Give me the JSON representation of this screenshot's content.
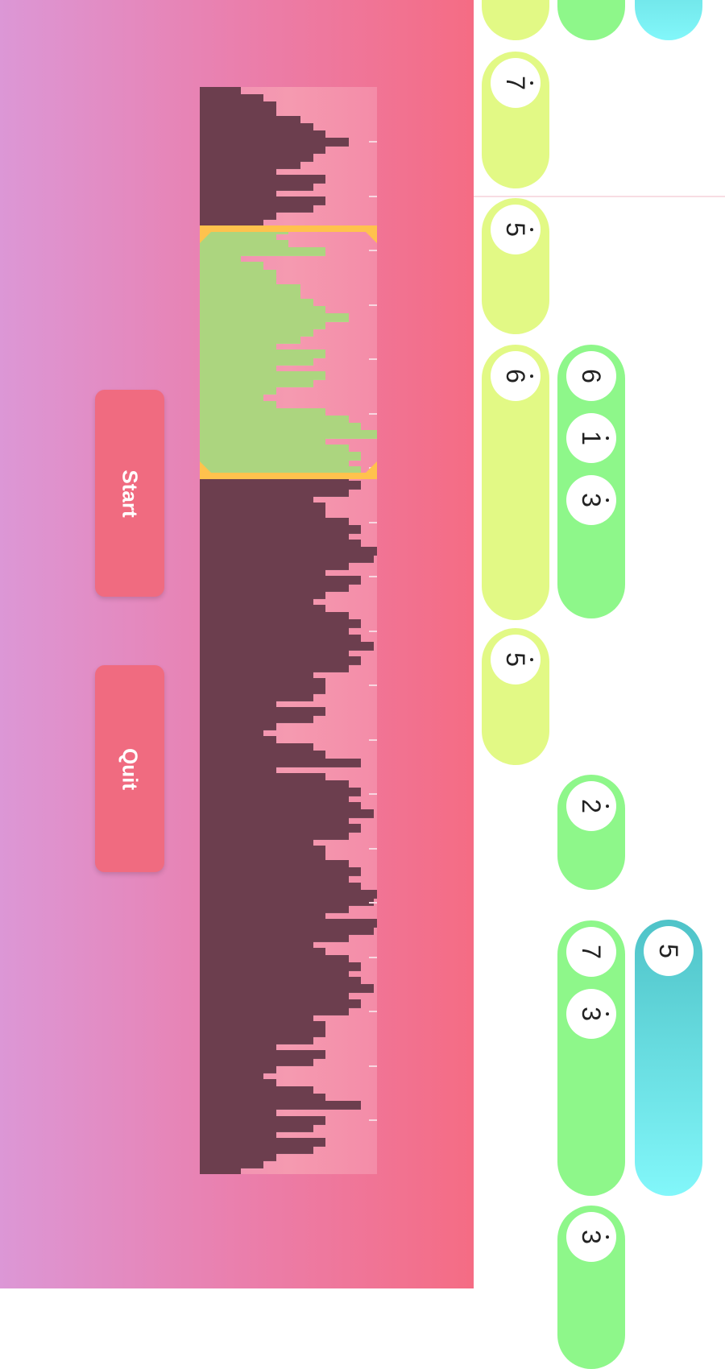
{
  "buttons": {
    "start_label": "Start",
    "quit_label": "Quit"
  },
  "colors": {
    "button": "#f06b80",
    "waveform_bar": "#6c3e4e",
    "selection_fill": "#acd57f",
    "selection_border": "#ffc24d",
    "lane_1": "#e2f985",
    "lane_2": "#8ef78a",
    "lane_3_top": "#4fc3c8",
    "lane_3_bottom": "#82f7fa"
  },
  "waveform": {
    "selection_bar_range": [
      19,
      53
    ],
    "levels": [
      0.23,
      0.36,
      0.43,
      0.43,
      0.57,
      0.64,
      0.71,
      0.84,
      0.71,
      0.64,
      0.57,
      0.43,
      0.71,
      0.64,
      0.43,
      0.71,
      0.64,
      0.43,
      0.36,
      0.5,
      0.43,
      0.5,
      0.71,
      0.23,
      0.36,
      0.43,
      0.43,
      0.57,
      0.57,
      0.64,
      0.71,
      0.84,
      0.71,
      0.64,
      0.57,
      0.43,
      0.71,
      0.64,
      0.43,
      0.71,
      0.64,
      0.43,
      0.36,
      0.43,
      0.71,
      0.84,
      0.91,
      1.0,
      0.71,
      0.84,
      0.91,
      0.84,
      0.91,
      0.84,
      0.91,
      0.84,
      0.64,
      0.71,
      0.71,
      0.84,
      0.91,
      0.84,
      0.91,
      1.0,
      0.98,
      0.84,
      0.71,
      0.91,
      0.84,
      0.71,
      0.64,
      0.71,
      0.84,
      0.91,
      0.84,
      0.91,
      0.98,
      0.84,
      0.91,
      0.84,
      0.64,
      0.71,
      0.71,
      0.64,
      0.43,
      0.71,
      0.64,
      0.43,
      0.36,
      0.43,
      0.64,
      0.71,
      0.91,
      0.43,
      0.71,
      0.84,
      0.91,
      0.84,
      0.91,
      0.98,
      0.84,
      0.91,
      0.84,
      0.64,
      0.71,
      0.71,
      0.84,
      0.91,
      0.84,
      0.91,
      1.0,
      0.98,
      0.84,
      0.71,
      1.0,
      0.98,
      0.84,
      0.64,
      0.71,
      0.84,
      0.91,
      0.84,
      0.91,
      0.98,
      0.84,
      0.91,
      0.84,
      0.64,
      0.71,
      0.71,
      0.64,
      0.43,
      0.71,
      0.64,
      0.43,
      0.36,
      0.43,
      0.64,
      0.71,
      0.91,
      0.43,
      0.71,
      0.64,
      0.43,
      0.71,
      0.64,
      0.43,
      0.36,
      0.23
    ]
  },
  "lanes": [
    {
      "notes": [
        {
          "labels": []
        },
        {
          "labels": [
            {
              "digit": "7",
              "dot": true
            }
          ]
        },
        {
          "labels": [
            {
              "digit": "5",
              "dot": true
            }
          ]
        },
        {
          "labels": [
            {
              "digit": "6",
              "dot": true
            }
          ]
        },
        {
          "labels": [
            {
              "digit": "5",
              "dot": true
            }
          ]
        }
      ]
    },
    {
      "notes": [
        {
          "labels": []
        },
        {
          "labels": [
            {
              "digit": "6",
              "dot": false
            },
            {
              "digit": "1",
              "dot": true
            },
            {
              "digit": "3",
              "dot": true
            }
          ]
        },
        {
          "labels": [
            {
              "digit": "2",
              "dot": true
            }
          ]
        },
        {
          "labels": [
            {
              "digit": "7",
              "dot": false
            },
            {
              "digit": "3",
              "dot": true
            }
          ]
        },
        {
          "labels": [
            {
              "digit": "3",
              "dot": true
            }
          ]
        }
      ]
    },
    {
      "notes": [
        {
          "labels": []
        },
        {
          "labels": [
            {
              "digit": "5",
              "dot": false
            }
          ]
        }
      ]
    }
  ]
}
